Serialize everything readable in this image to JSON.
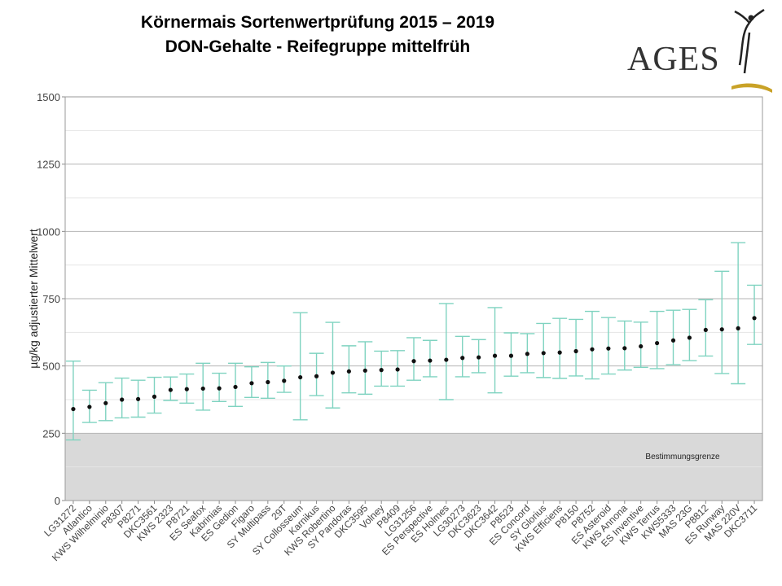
{
  "header": {
    "title": "Körnermais Sortenwertprüfung 2015 – 2019",
    "subtitle": "DON-Gehalte - Reifegruppe mittelfrüh"
  },
  "logo": {
    "text": "AGES",
    "color": "#333333",
    "swoosh_color": "#c9a227"
  },
  "chart_data": {
    "type": "errorbar",
    "ylabel": "µg/kg adjustierter Mittelwert",
    "ylim": [
      0,
      1500
    ],
    "yticks": [
      0,
      250,
      500,
      750,
      1000,
      1250,
      1500
    ],
    "grid": true,
    "point_color": "#111111",
    "errorbar_color": "#7fd3c0",
    "limit_band": {
      "from": 0,
      "to": 250,
      "label": "Bestimmungsgrenze",
      "color": "#d9d9d9"
    },
    "categories": [
      "LG31272",
      "Atlantico",
      "KWS Wilhelminio",
      "P8307",
      "P8271",
      "DKC3561",
      "KWS 2323",
      "P8721",
      "ES Seafox",
      "Kabrinias",
      "ES Gedion",
      "Figaro",
      "SY Multipass",
      "29T",
      "SY Collosseum",
      "Karnikus",
      "KWS Robertino",
      "SY Pandoras",
      "DKC3595",
      "Volney",
      "P8409",
      "LG31256",
      "ES Perspective",
      "ES Holmes",
      "LG30273",
      "DKC3623",
      "DKC3642",
      "P8523",
      "ES Concord",
      "SY Glorius",
      "KWS Efficiens",
      "P8150",
      "P8752",
      "ES Asteroid",
      "KWS Annona",
      "ES Inventive",
      "KWS Terrus",
      "KWS5333",
      "MAS 23G",
      "P8812",
      "ES Runway",
      "MAS 220V",
      "DKC3711"
    ],
    "values": [
      340,
      348,
      362,
      375,
      377,
      386,
      411,
      414,
      416,
      417,
      422,
      436,
      440,
      445,
      458,
      462,
      475,
      480,
      483,
      485,
      487,
      518,
      520,
      523,
      530,
      532,
      538,
      538,
      545,
      548,
      550,
      555,
      562,
      565,
      566,
      573,
      585,
      595,
      605,
      634,
      636,
      640,
      678
    ],
    "lower": [
      225,
      290,
      297,
      307,
      310,
      325,
      372,
      362,
      336,
      368,
      350,
      383,
      380,
      402,
      300,
      390,
      344,
      400,
      395,
      425,
      425,
      447,
      460,
      375,
      460,
      475,
      400,
      462,
      475,
      457,
      454,
      463,
      452,
      470,
      485,
      495,
      490,
      505,
      520,
      537,
      472,
      434,
      580
    ],
    "upper": [
      518,
      410,
      438,
      455,
      447,
      458,
      459,
      470,
      510,
      473,
      510,
      497,
      513,
      500,
      698,
      547,
      662,
      575,
      590,
      555,
      557,
      605,
      595,
      732,
      610,
      598,
      717,
      623,
      620,
      658,
      677,
      673,
      703,
      680,
      667,
      663,
      703,
      707,
      710,
      746,
      852,
      958,
      800
    ]
  }
}
